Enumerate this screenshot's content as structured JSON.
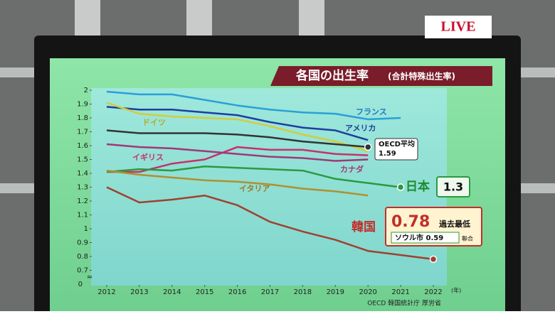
{
  "live_badge": "LIVE",
  "chart_data": {
    "type": "line",
    "title": "各国の出生率",
    "subtitle": "(合計特殊出生率)",
    "x_unit": "(年)",
    "y_break_label": "0",
    "source": "OECD 韓国統計庁 厚労省",
    "x": [
      2012,
      2013,
      2014,
      2015,
      2016,
      2017,
      2018,
      2019,
      2020,
      2021,
      2022
    ],
    "xlim": [
      2012,
      2022
    ],
    "xticks": [
      2012,
      2013,
      2014,
      2015,
      2016,
      2017,
      2018,
      2019,
      2020,
      2021,
      2022
    ],
    "ylim": [
      0.6,
      2.0
    ],
    "yticks": [
      0.7,
      0.8,
      0.9,
      1.0,
      1.1,
      1.2,
      1.3,
      1.4,
      1.5,
      1.6,
      1.7,
      1.8,
      1.9,
      2.0
    ],
    "grid": false,
    "series": [
      {
        "name": "フランス",
        "color": "#2a9fd8",
        "values": [
          1.99,
          1.97,
          1.97,
          1.93,
          1.89,
          1.86,
          1.84,
          1.83,
          1.79,
          1.8,
          null
        ]
      },
      {
        "name": "アメリカ",
        "color": "#1d3f9e",
        "values": [
          1.88,
          1.86,
          1.86,
          1.84,
          1.82,
          1.77,
          1.73,
          1.71,
          1.64,
          null,
          null
        ]
      },
      {
        "name": "ドイツ",
        "color": "#d4cc3c",
        "values": [
          1.91,
          1.83,
          1.81,
          1.8,
          1.79,
          1.74,
          1.68,
          1.63,
          1.56,
          null,
          null
        ]
      },
      {
        "name": "OECD平均",
        "color": "#333333",
        "marker_end": true,
        "values": [
          1.71,
          1.69,
          1.69,
          1.69,
          1.68,
          1.66,
          1.63,
          1.61,
          1.59,
          null,
          null
        ]
      },
      {
        "name": "イギリス",
        "color": "#c8306a",
        "values": [
          1.41,
          1.41,
          1.47,
          1.5,
          1.59,
          1.57,
          1.57,
          1.54,
          1.53,
          null,
          null
        ]
      },
      {
        "name": "カナダ",
        "color": "#a03878",
        "values": [
          1.61,
          1.59,
          1.58,
          1.56,
          1.54,
          1.52,
          1.51,
          1.49,
          1.5,
          null,
          null
        ]
      },
      {
        "name": "日本",
        "color": "#2a9a40",
        "marker_end": true,
        "values": [
          1.41,
          1.43,
          1.42,
          1.45,
          1.44,
          1.43,
          1.42,
          1.36,
          1.33,
          1.3,
          null
        ]
      },
      {
        "name": "イタリア",
        "color": "#b09030",
        "values": [
          1.42,
          1.39,
          1.37,
          1.35,
          1.34,
          1.32,
          1.29,
          1.27,
          1.24,
          null,
          null
        ]
      },
      {
        "name": "韓国",
        "color": "#a04030",
        "marker_end": true,
        "values": [
          1.3,
          1.19,
          1.21,
          1.24,
          1.17,
          1.05,
          0.98,
          0.92,
          0.84,
          0.81,
          0.78
        ]
      }
    ],
    "annotations": {
      "oecd_value": "1.59",
      "japan_value": "1.3",
      "korea_value": "0.78",
      "korea_note": "過去最低",
      "seoul": "ソウル市 0.59",
      "seoul_source": "聯合"
    }
  }
}
